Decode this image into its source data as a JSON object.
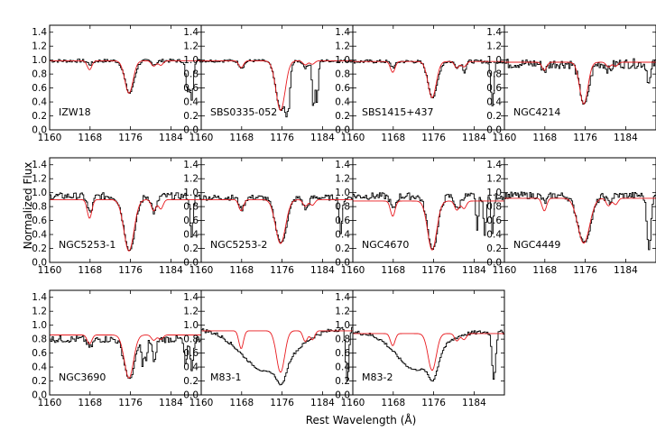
{
  "chart_data": {
    "type": "line",
    "xlabel": "Rest Wavelength (Å)",
    "ylabel": "Normalized Flux",
    "xlim": [
      1160,
      1190
    ],
    "ylim": [
      0.0,
      1.5
    ],
    "x_ticks": [
      "1160",
      "1168",
      "1176",
      "1184"
    ],
    "y_ticks": [
      "0.0",
      "0.2",
      "0.4",
      "0.6",
      "0.8",
      "1.0",
      "1.2",
      "1.4"
    ],
    "grid": false,
    "colors": {
      "observed": "#000000",
      "model": "#e8191e"
    },
    "panels": [
      {
        "label": "IZW18",
        "continuum": 0.99,
        "noise": 0.025,
        "model_continuum": 0.99,
        "main_depth": 0.47,
        "main_width": 0.9,
        "model_side_depth": 0.13,
        "obs_side_depth": 0.05,
        "extra_lines": [
          [
            1187.2,
            0.45,
            0.35
          ],
          [
            1188.0,
            0.55,
            0.3
          ]
        ]
      },
      {
        "label": "SBS0335-052",
        "continuum": 0.99,
        "noise": 0.02,
        "model_continuum": 0.99,
        "main_depth": 0.72,
        "main_width": 1.0,
        "model_side_depth": 0.1,
        "obs_side_depth": 0.1,
        "extra_lines": [
          [
            1176.7,
            0.65,
            0.25
          ],
          [
            1177.2,
            0.6,
            0.25
          ],
          [
            1182.1,
            0.7,
            0.25
          ],
          [
            1182.8,
            0.6,
            0.25
          ]
        ]
      },
      {
        "label": "SBS1415+437",
        "continuum": 0.98,
        "noise": 0.025,
        "model_continuum": 0.98,
        "main_depth": 0.53,
        "main_width": 0.9,
        "model_side_depth": 0.16,
        "obs_side_depth": 0.08,
        "extra_lines": [
          [
            1182.0,
            0.15,
            0.3
          ],
          [
            1187.5,
            0.65,
            0.3
          ]
        ]
      },
      {
        "label": "NGC4214",
        "continuum": 0.95,
        "noise": 0.07,
        "model_continuum": 0.97,
        "main_depth": 0.62,
        "main_width": 0.9,
        "model_side_depth": 0.12,
        "obs_side_depth": 0.1,
        "extra_lines": [
          [
            1188.5,
            0.3,
            0.35
          ]
        ]
      },
      {
        "label": "NGC5253-1",
        "continuum": 0.95,
        "noise": 0.05,
        "model_continuum": 0.9,
        "main_depth": 0.82,
        "main_width": 1.1,
        "model_side_depth": 0.3,
        "obs_side_depth": 0.25,
        "extra_lines": [
          [
            1188.0,
            0.6,
            0.3
          ]
        ]
      },
      {
        "label": "NGC5253-2",
        "continuum": 0.93,
        "noise": 0.04,
        "model_continuum": 0.9,
        "main_depth": 0.7,
        "main_width": 1.1,
        "model_side_depth": 0.18,
        "obs_side_depth": 0.18,
        "extra_lines": [
          [
            1187.5,
            0.55,
            0.3
          ]
        ]
      },
      {
        "label": "NGC4670",
        "continuum": 0.95,
        "noise": 0.05,
        "model_continuum": 0.88,
        "main_depth": 0.8,
        "main_width": 1.0,
        "model_side_depth": 0.25,
        "obs_side_depth": 0.2,
        "extra_lines": [
          [
            1184.5,
            0.5,
            0.25
          ],
          [
            1186.0,
            0.6,
            0.25
          ],
          [
            1187.5,
            0.55,
            0.25
          ]
        ]
      },
      {
        "label": "NGC4449",
        "continuum": 0.96,
        "noise": 0.05,
        "model_continuum": 0.92,
        "main_depth": 0.7,
        "main_width": 1.3,
        "model_side_depth": 0.2,
        "obs_side_depth": 0.1,
        "extra_lines": [
          [
            1188.5,
            0.8,
            0.4
          ]
        ]
      },
      {
        "label": "NGC3690",
        "continuum": 0.8,
        "noise": 0.05,
        "model_continuum": 0.86,
        "main_depth": 0.72,
        "main_width": 1.0,
        "model_side_depth": 0.15,
        "obs_side_depth": 0.15,
        "extra_lines": [
          [
            1178.3,
            0.45,
            0.25
          ],
          [
            1179.0,
            0.4,
            0.25
          ],
          [
            1180.6,
            0.35,
            0.25
          ],
          [
            1186.8,
            0.45,
            0.3
          ],
          [
            1188.0,
            0.55,
            0.3
          ]
        ]
      },
      {
        "label": "M83-1",
        "continuum": 0.95,
        "noise": 0.03,
        "model_continuum": 0.92,
        "main_depth": 0.65,
        "main_width": 0.9,
        "model_side_depth": 0.28,
        "obs_side_depth": 0.0,
        "broad": [
          1173.0,
          5.0,
          0.65
        ],
        "extra_lines": [
          [
            1188.8,
            0.8,
            0.3
          ]
        ]
      },
      {
        "label": "M83-2",
        "continuum": 0.9,
        "noise": 0.03,
        "model_continuum": 0.88,
        "main_depth": 0.6,
        "main_width": 0.9,
        "model_side_depth": 0.2,
        "obs_side_depth": 0.0,
        "broad": [
          1172.5,
          4.0,
          0.6
        ],
        "extra_lines": [
          [
            1187.8,
            0.75,
            0.35
          ]
        ]
      }
    ]
  }
}
